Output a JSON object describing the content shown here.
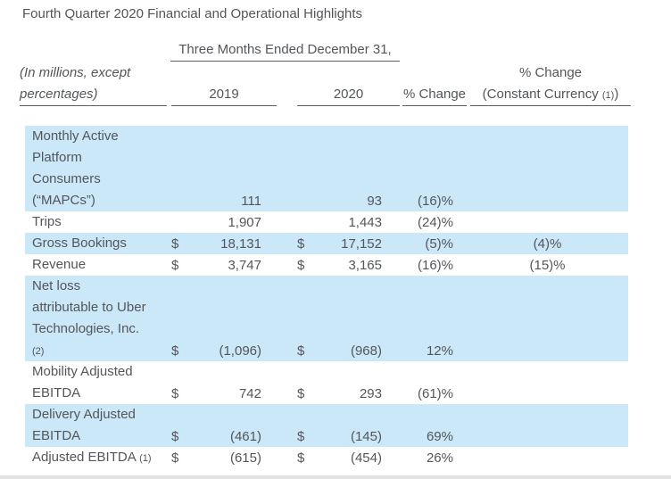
{
  "page": {
    "title": "Fourth Quarter 2020 Financial and Operational Highlights"
  },
  "colors": {
    "row_highlight": "#cbe8f8",
    "text": "#53565a"
  },
  "header": {
    "period": "Three Months Ended December 31,",
    "unit_note": "(In millions, except\npercentages)",
    "col_2019": "2019",
    "col_2020": "2020",
    "col_pct_change": "% Change",
    "col_cc_line1": "% Change",
    "col_cc_line2_pre": "(Constant Currency ",
    "col_cc_footnote": "(1)",
    "col_cc_line2_post": ")"
  },
  "table": {
    "rows": [
      {
        "label": "Monthly Active\nPlatform\nConsumers\n(“MAPCs”)",
        "dollar_2019": "",
        "value_2019": "111",
        "dollar_2020": "",
        "value_2020": "93",
        "pct_change": "(16)%",
        "pct_change_cc": ""
      },
      {
        "label": "Trips",
        "dollar_2019": "",
        "value_2019": "1,907",
        "dollar_2020": "",
        "value_2020": "1,443",
        "pct_change": "(24)%",
        "pct_change_cc": ""
      },
      {
        "label": "Gross Bookings",
        "dollar_2019": "$",
        "value_2019": "18,131",
        "dollar_2020": "$",
        "value_2020": "17,152",
        "pct_change": "(5)%",
        "pct_change_cc": "(4)%"
      },
      {
        "label": "Revenue",
        "dollar_2019": "$",
        "value_2019": "3,747",
        "dollar_2020": "$",
        "value_2020": "3,165",
        "pct_change": "(16)%",
        "pct_change_cc": "(15)%"
      },
      {
        "label": "Net loss\nattributable to Uber\nTechnologies, Inc.\n",
        "footnote": "(2)",
        "dollar_2019": "$",
        "value_2019": "(1,096)",
        "dollar_2020": "$",
        "value_2020": "(968)",
        "pct_change": "12%",
        "pct_change_cc": ""
      },
      {
        "label": "Mobility Adjusted\nEBITDA",
        "dollar_2019": "$",
        "value_2019": "742",
        "dollar_2020": "$",
        "value_2020": "293",
        "pct_change": "(61)%",
        "pct_change_cc": ""
      },
      {
        "label": "Delivery Adjusted\nEBITDA",
        "dollar_2019": "$",
        "value_2019": "(461)",
        "dollar_2020": "$",
        "value_2020": "(145)",
        "pct_change": "69%",
        "pct_change_cc": ""
      },
      {
        "label": "Adjusted EBITDA ",
        "footnote": "(1)",
        "dollar_2019": "$",
        "value_2019": "(615)",
        "dollar_2020": "$",
        "value_2020": "(454)",
        "pct_change": "26%",
        "pct_change_cc": ""
      }
    ]
  }
}
